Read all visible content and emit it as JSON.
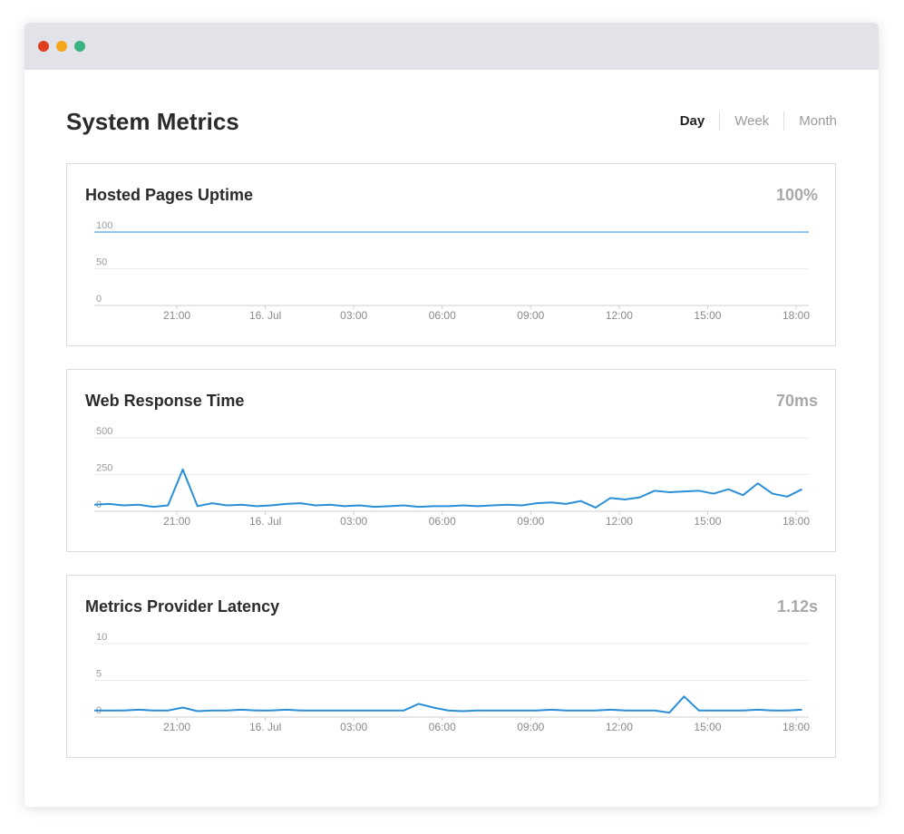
{
  "header": {
    "title": "System Metrics",
    "tabs": [
      "Day",
      "Week",
      "Month"
    ]
  },
  "chart_data": [
    {
      "type": "line",
      "title": "Hosted Pages Uptime",
      "current": "100%",
      "x": [
        18.2,
        42.43
      ],
      "values": [
        100,
        100
      ],
      "color": "#2a8fd8",
      "xlim": [
        18.2,
        42.43
      ],
      "ylim": [
        0,
        100
      ],
      "yticks": [
        0,
        50,
        100
      ],
      "xticks": [
        {
          "value": 21,
          "label": "21:00"
        },
        {
          "value": 24,
          "label": "16. Jul"
        },
        {
          "value": 27,
          "label": "03:00"
        },
        {
          "value": 30,
          "label": "06:00"
        },
        {
          "value": 33,
          "label": "09:00"
        },
        {
          "value": 36,
          "label": "12:00"
        },
        {
          "value": 39,
          "label": "15:00"
        },
        {
          "value": 42,
          "label": "18:00"
        }
      ],
      "grid": true
    },
    {
      "type": "line",
      "title": "Web Response Time",
      "current": "70ms",
      "x": [
        18.2,
        18.7,
        19.2,
        19.7,
        20.2,
        20.7,
        21.2,
        21.7,
        22.2,
        22.7,
        23.2,
        23.7,
        24.2,
        24.7,
        25.2,
        25.7,
        26.2,
        26.7,
        27.2,
        27.7,
        28.2,
        28.7,
        29.2,
        29.7,
        30.2,
        30.7,
        31.2,
        31.7,
        32.2,
        32.7,
        33.2,
        33.7,
        34.2,
        34.7,
        35.2,
        35.7,
        36.2,
        36.7,
        37.2,
        37.7,
        38.2,
        38.7,
        39.2,
        39.7,
        40.2,
        40.7,
        41.2,
        41.7,
        42.2
      ],
      "values": [
        45,
        50,
        40,
        45,
        30,
        40,
        285,
        35,
        55,
        40,
        45,
        35,
        40,
        50,
        55,
        40,
        45,
        35,
        40,
        30,
        35,
        40,
        30,
        35,
        35,
        40,
        35,
        40,
        45,
        40,
        55,
        60,
        50,
        70,
        25,
        90,
        80,
        95,
        140,
        130,
        135,
        140,
        120,
        150,
        110,
        190,
        120,
        100,
        150
      ],
      "color": "#2a8fd8",
      "xlim": [
        18.2,
        42.43
      ],
      "ylim": [
        0,
        500
      ],
      "yticks": [
        0,
        250,
        500
      ],
      "xticks": [
        {
          "value": 21,
          "label": "21:00"
        },
        {
          "value": 24,
          "label": "16. Jul"
        },
        {
          "value": 27,
          "label": "03:00"
        },
        {
          "value": 30,
          "label": "06:00"
        },
        {
          "value": 33,
          "label": "09:00"
        },
        {
          "value": 36,
          "label": "12:00"
        },
        {
          "value": 39,
          "label": "15:00"
        },
        {
          "value": 42,
          "label": "18:00"
        }
      ],
      "grid": true
    },
    {
      "type": "line",
      "title": "Metrics Provider Latency",
      "current": "1.12s",
      "x": [
        18.2,
        18.7,
        19.2,
        19.7,
        20.2,
        20.7,
        21.2,
        21.7,
        22.2,
        22.7,
        23.2,
        23.7,
        24.2,
        24.7,
        25.2,
        25.7,
        26.2,
        26.7,
        27.2,
        27.7,
        28.2,
        28.7,
        29.2,
        29.7,
        30.2,
        30.7,
        31.2,
        31.7,
        32.2,
        32.7,
        33.2,
        33.7,
        34.2,
        34.7,
        35.2,
        35.7,
        36.2,
        36.7,
        37.2,
        37.7,
        38.2,
        38.7,
        39.2,
        39.7,
        40.2,
        40.7,
        41.2,
        41.7,
        42.2
      ],
      "values": [
        0.9,
        0.9,
        0.9,
        1.0,
        0.9,
        0.9,
        1.3,
        0.8,
        0.9,
        0.9,
        1.0,
        0.9,
        0.9,
        1.0,
        0.9,
        0.9,
        0.9,
        0.9,
        0.9,
        0.9,
        0.9,
        0.9,
        1.8,
        1.3,
        0.9,
        0.8,
        0.9,
        0.9,
        0.9,
        0.9,
        0.9,
        1.0,
        0.9,
        0.9,
        0.9,
        1.0,
        0.9,
        0.9,
        0.9,
        0.6,
        2.8,
        0.9,
        0.9,
        0.9,
        0.9,
        1.0,
        0.9,
        0.9,
        1.0
      ],
      "color": "#2a8fd8",
      "xlim": [
        18.2,
        42.43
      ],
      "ylim": [
        0,
        10
      ],
      "yticks": [
        0,
        5,
        10
      ],
      "xticks": [
        {
          "value": 21,
          "label": "21:00"
        },
        {
          "value": 24,
          "label": "16. Jul"
        },
        {
          "value": 27,
          "label": "03:00"
        },
        {
          "value": 30,
          "label": "06:00"
        },
        {
          "value": 33,
          "label": "09:00"
        },
        {
          "value": 36,
          "label": "12:00"
        },
        {
          "value": 39,
          "label": "15:00"
        },
        {
          "value": 42,
          "label": "18:00"
        }
      ],
      "grid": true
    }
  ]
}
